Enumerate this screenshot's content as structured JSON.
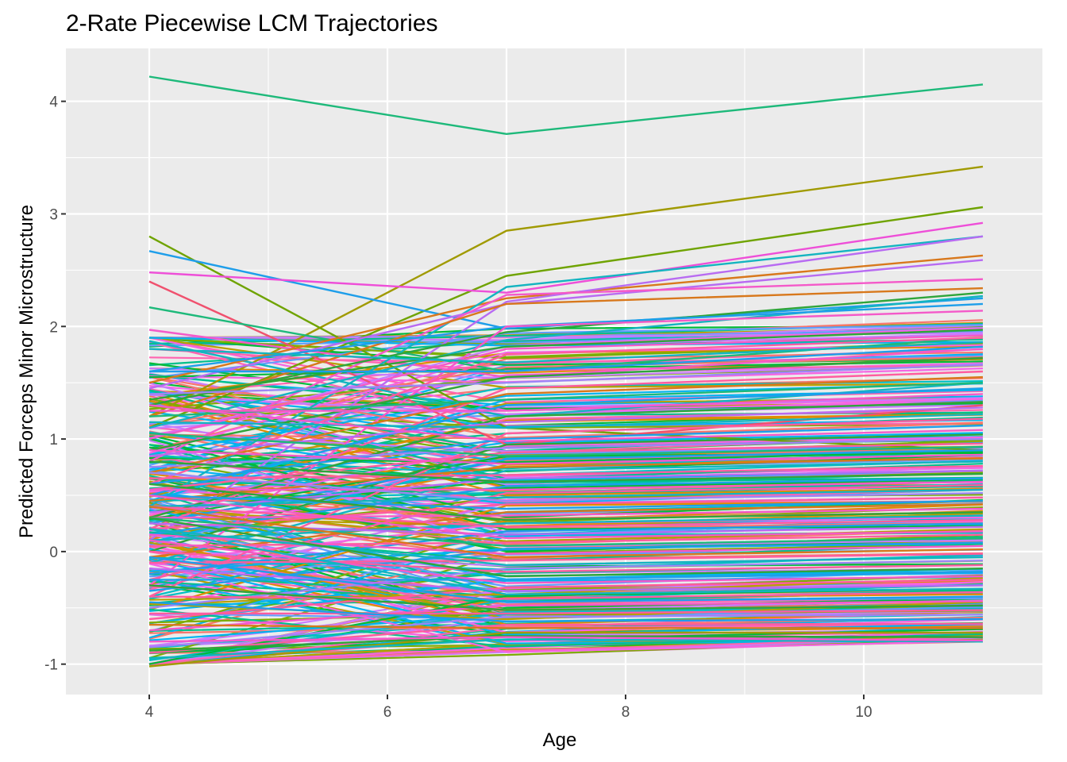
{
  "chart_data": {
    "type": "line",
    "title": "2-Rate Piecewise LCM Trajectories",
    "xlabel": "Age",
    "ylabel": "Predicted Forceps Minor Microstructure",
    "x": [
      4,
      7,
      11
    ],
    "xlim": [
      3.3,
      11.5
    ],
    "ylim": [
      -1.27,
      4.47
    ],
    "xticks": [
      4,
      6,
      8,
      10
    ],
    "yticks": [
      -1,
      0,
      1,
      2,
      3,
      4
    ],
    "legend": "none",
    "grid": true,
    "palette": [
      "#F8766D",
      "#DE8C00",
      "#B79F00",
      "#7CAE00",
      "#00BA38",
      "#00C08B",
      "#00BFC4",
      "#00B4F0",
      "#619CFF",
      "#C77CFF",
      "#F564E3",
      "#FF64B0"
    ],
    "series": [
      {
        "values": [
          4.22,
          3.71,
          4.15
        ],
        "color": "#1DB97A"
      },
      {
        "values": [
          1.2,
          2.85,
          3.42
        ],
        "color": "#A09A00"
      },
      {
        "values": [
          2.8,
          1.1,
          0.9
        ],
        "color": "#6FA300"
      },
      {
        "values": [
          1.1,
          2.45,
          3.06
        ],
        "color": "#6FA300"
      },
      {
        "values": [
          2.67,
          1.98,
          2.25
        ],
        "color": "#1E9EEA"
      },
      {
        "values": [
          2.4,
          0.95,
          1.3
        ],
        "color": "#F0516E"
      },
      {
        "values": [
          2.48,
          2.3,
          2.92
        ],
        "color": "#EE4ED8"
      },
      {
        "values": [
          2.17,
          1.6,
          1.9
        ],
        "color": "#1DB97A"
      },
      {
        "values": [
          1.97,
          1.55,
          1.8
        ],
        "color": "#F459C9"
      },
      {
        "values": [
          1.87,
          1.2,
          1.5
        ],
        "color": "#13B4C0"
      },
      {
        "values": [
          1.5,
          2.25,
          2.63
        ],
        "color": "#D8781C"
      },
      {
        "values": [
          0.4,
          2.35,
          2.8
        ],
        "color": "#13B4C0"
      },
      {
        "values": [
          0.1,
          2.22,
          2.8
        ],
        "color": "#B86BF2"
      },
      {
        "values": [
          1.45,
          2.2,
          2.59
        ],
        "color": "#B86BF2"
      },
      {
        "values": [
          0.8,
          2.28,
          2.42
        ],
        "color": "#F459C9"
      },
      {
        "values": [
          1.2,
          2.2,
          2.34
        ],
        "color": "#D8781C"
      },
      {
        "values": [
          1.3,
          1.95,
          2.3
        ],
        "color": "#2FA53A"
      },
      {
        "values": [
          1.1,
          1.88,
          2.27
        ],
        "color": "#13B4C0"
      },
      {
        "values": [
          1.6,
          2.0,
          2.2
        ],
        "color": "#1E9EEA"
      },
      {
        "values": [
          -0.3,
          2.0,
          2.14
        ],
        "color": "#F459C9"
      },
      {
        "values": [
          1.35,
          1.82,
          1.97
        ],
        "color": "#2FA53A"
      },
      {
        "values": [
          1.0,
          1.8,
          1.92
        ],
        "color": "#F459C9"
      },
      {
        "values": [
          0.6,
          1.75,
          1.9
        ],
        "color": "#FF5C9F"
      },
      {
        "values": [
          1.8,
          1.68,
          1.86
        ],
        "color": "#13B4C0"
      },
      {
        "values": [
          1.6,
          1.6,
          1.82
        ],
        "color": "#1E9EEA"
      },
      {
        "values": [
          0.9,
          1.55,
          1.72
        ],
        "color": "#2FA53A"
      },
      {
        "values": [
          1.4,
          1.5,
          1.66
        ],
        "color": "#9D85F5"
      },
      {
        "values": [
          0.2,
          1.45,
          1.6
        ],
        "color": "#FF5C9F"
      },
      {
        "values": [
          0.7,
          1.4,
          1.55
        ],
        "color": "#D8781C"
      },
      {
        "values": [
          1.2,
          1.35,
          1.5
        ],
        "color": "#1DB97A"
      },
      {
        "values": [
          0.5,
          1.3,
          1.45
        ],
        "color": "#1E9EEA"
      },
      {
        "values": [
          1.25,
          1.25,
          1.4
        ],
        "color": "#F459C9"
      },
      {
        "values": [
          0.3,
          1.2,
          1.33
        ],
        "color": "#2FA53A"
      },
      {
        "values": [
          0.85,
          1.15,
          1.28
        ],
        "color": "#B86BF2"
      },
      {
        "values": [
          1.15,
          1.1,
          1.22
        ],
        "color": "#13B4C0"
      },
      {
        "values": [
          -0.4,
          1.05,
          1.18
        ],
        "color": "#FF5C9F"
      },
      {
        "values": [
          0.6,
          1.0,
          1.12
        ],
        "color": "#1E9EEA"
      },
      {
        "values": [
          1.3,
          0.98,
          1.08
        ],
        "color": "#F459C9"
      },
      {
        "values": [
          0.0,
          0.95,
          1.04
        ],
        "color": "#2FA53A"
      },
      {
        "values": [
          0.75,
          0.92,
          1.0
        ],
        "color": "#9D85F5"
      },
      {
        "values": [
          0.55,
          0.88,
          0.96
        ],
        "color": "#FF5C9F"
      },
      {
        "values": [
          1.05,
          0.85,
          0.93
        ],
        "color": "#1DB97A"
      },
      {
        "values": [
          0.25,
          0.82,
          0.9
        ],
        "color": "#1E9EEA"
      },
      {
        "values": [
          0.9,
          0.78,
          0.86
        ],
        "color": "#F459C9"
      },
      {
        "values": [
          0.45,
          0.75,
          0.83
        ],
        "color": "#D8781C"
      },
      {
        "values": [
          -0.1,
          0.72,
          0.8
        ],
        "color": "#13B4C0"
      },
      {
        "values": [
          0.65,
          0.68,
          0.76
        ],
        "color": "#FF5C9F"
      },
      {
        "values": [
          0.35,
          0.65,
          0.72
        ],
        "color": "#B86BF2"
      },
      {
        "values": [
          0.8,
          0.62,
          0.69
        ],
        "color": "#2FA53A"
      },
      {
        "values": [
          0.15,
          0.58,
          0.65
        ],
        "color": "#1E9EEA"
      },
      {
        "values": [
          0.55,
          0.55,
          0.62
        ],
        "color": "#F459C9"
      },
      {
        "values": [
          -0.25,
          0.52,
          0.59
        ],
        "color": "#FF5C9F"
      },
      {
        "values": [
          0.4,
          0.48,
          0.55
        ],
        "color": "#13B4C0"
      },
      {
        "values": [
          0.7,
          0.45,
          0.52
        ],
        "color": "#9D85F5"
      },
      {
        "values": [
          0.2,
          0.42,
          0.48
        ],
        "color": "#FF5C9F"
      },
      {
        "values": [
          0.5,
          0.38,
          0.45
        ],
        "color": "#1E9EEA"
      },
      {
        "values": [
          -0.05,
          0.35,
          0.42
        ],
        "color": "#D8781C"
      },
      {
        "values": [
          0.3,
          0.32,
          0.38
        ],
        "color": "#F459C9"
      },
      {
        "values": [
          0.6,
          0.28,
          0.35
        ],
        "color": "#2FA53A"
      },
      {
        "values": [
          0.1,
          0.25,
          0.32
        ],
        "color": "#13B4C0"
      },
      {
        "values": [
          0.4,
          0.22,
          0.28
        ],
        "color": "#FF5C9F"
      },
      {
        "values": [
          -0.2,
          0.18,
          0.25
        ],
        "color": "#1E9EEA"
      },
      {
        "values": [
          0.25,
          0.15,
          0.22
        ],
        "color": "#B86BF2"
      },
      {
        "values": [
          0.5,
          0.12,
          0.18
        ],
        "color": "#F459C9"
      },
      {
        "values": [
          0.05,
          0.08,
          0.15
        ],
        "color": "#FF5C9F"
      },
      {
        "values": [
          0.3,
          0.05,
          0.12
        ],
        "color": "#1DB97A"
      },
      {
        "values": [
          -0.35,
          0.02,
          0.08
        ],
        "color": "#1E9EEA"
      },
      {
        "values": [
          0.15,
          -0.02,
          0.05
        ],
        "color": "#F459C9"
      },
      {
        "values": [
          0.4,
          -0.05,
          0.02
        ],
        "color": "#D8781C"
      },
      {
        "values": [
          -0.1,
          -0.08,
          -0.02
        ],
        "color": "#FF5C9F"
      },
      {
        "values": [
          0.2,
          -0.12,
          -0.05
        ],
        "color": "#13B4C0"
      },
      {
        "values": [
          -0.5,
          -0.15,
          -0.08
        ],
        "color": "#9D85F5"
      },
      {
        "values": [
          0.0,
          -0.18,
          -0.12
        ],
        "color": "#FF5C9F"
      },
      {
        "values": [
          0.3,
          -0.22,
          -0.15
        ],
        "color": "#2FA53A"
      },
      {
        "values": [
          -0.25,
          -0.25,
          -0.18
        ],
        "color": "#1E9EEA"
      },
      {
        "values": [
          0.1,
          -0.28,
          -0.22
        ],
        "color": "#F459C9"
      },
      {
        "values": [
          -0.6,
          -0.32,
          -0.25
        ],
        "color": "#FF5C9F"
      },
      {
        "values": [
          -0.15,
          -0.35,
          -0.3
        ],
        "color": "#B86BF2"
      },
      {
        "values": [
          0.2,
          -0.38,
          -0.33
        ],
        "color": "#13B4C0"
      },
      {
        "values": [
          -0.4,
          -0.42,
          -0.36
        ],
        "color": "#FF5C9F"
      },
      {
        "values": [
          -0.05,
          -0.45,
          -0.4
        ],
        "color": "#1E9EEA"
      },
      {
        "values": [
          -0.7,
          -0.48,
          -0.44
        ],
        "color": "#F459C9"
      },
      {
        "values": [
          -0.3,
          -0.52,
          -0.48
        ],
        "color": "#2FA53A"
      },
      {
        "values": [
          -0.55,
          -0.55,
          -0.52
        ],
        "color": "#FF5C9F"
      },
      {
        "values": [
          -0.85,
          -0.58,
          -0.56
        ],
        "color": "#9D85F5"
      },
      {
        "values": [
          -0.45,
          -0.62,
          -0.6
        ],
        "color": "#1E9EEA"
      },
      {
        "values": [
          -0.9,
          -0.65,
          -0.64
        ],
        "color": "#FF5C9F"
      },
      {
        "values": [
          -0.65,
          -0.68,
          -0.68
        ],
        "color": "#D8781C"
      },
      {
        "values": [
          -1.02,
          -0.72,
          -0.72
        ],
        "color": "#A09A00"
      },
      {
        "values": [
          -0.88,
          -0.75,
          -0.76
        ],
        "color": "#2FA53A"
      },
      {
        "values": [
          -0.95,
          -0.78,
          -0.8
        ],
        "color": "#13B4C0"
      },
      {
        "values": [
          -0.8,
          -0.76,
          -0.79
        ],
        "color": "#F459C9"
      }
    ]
  }
}
